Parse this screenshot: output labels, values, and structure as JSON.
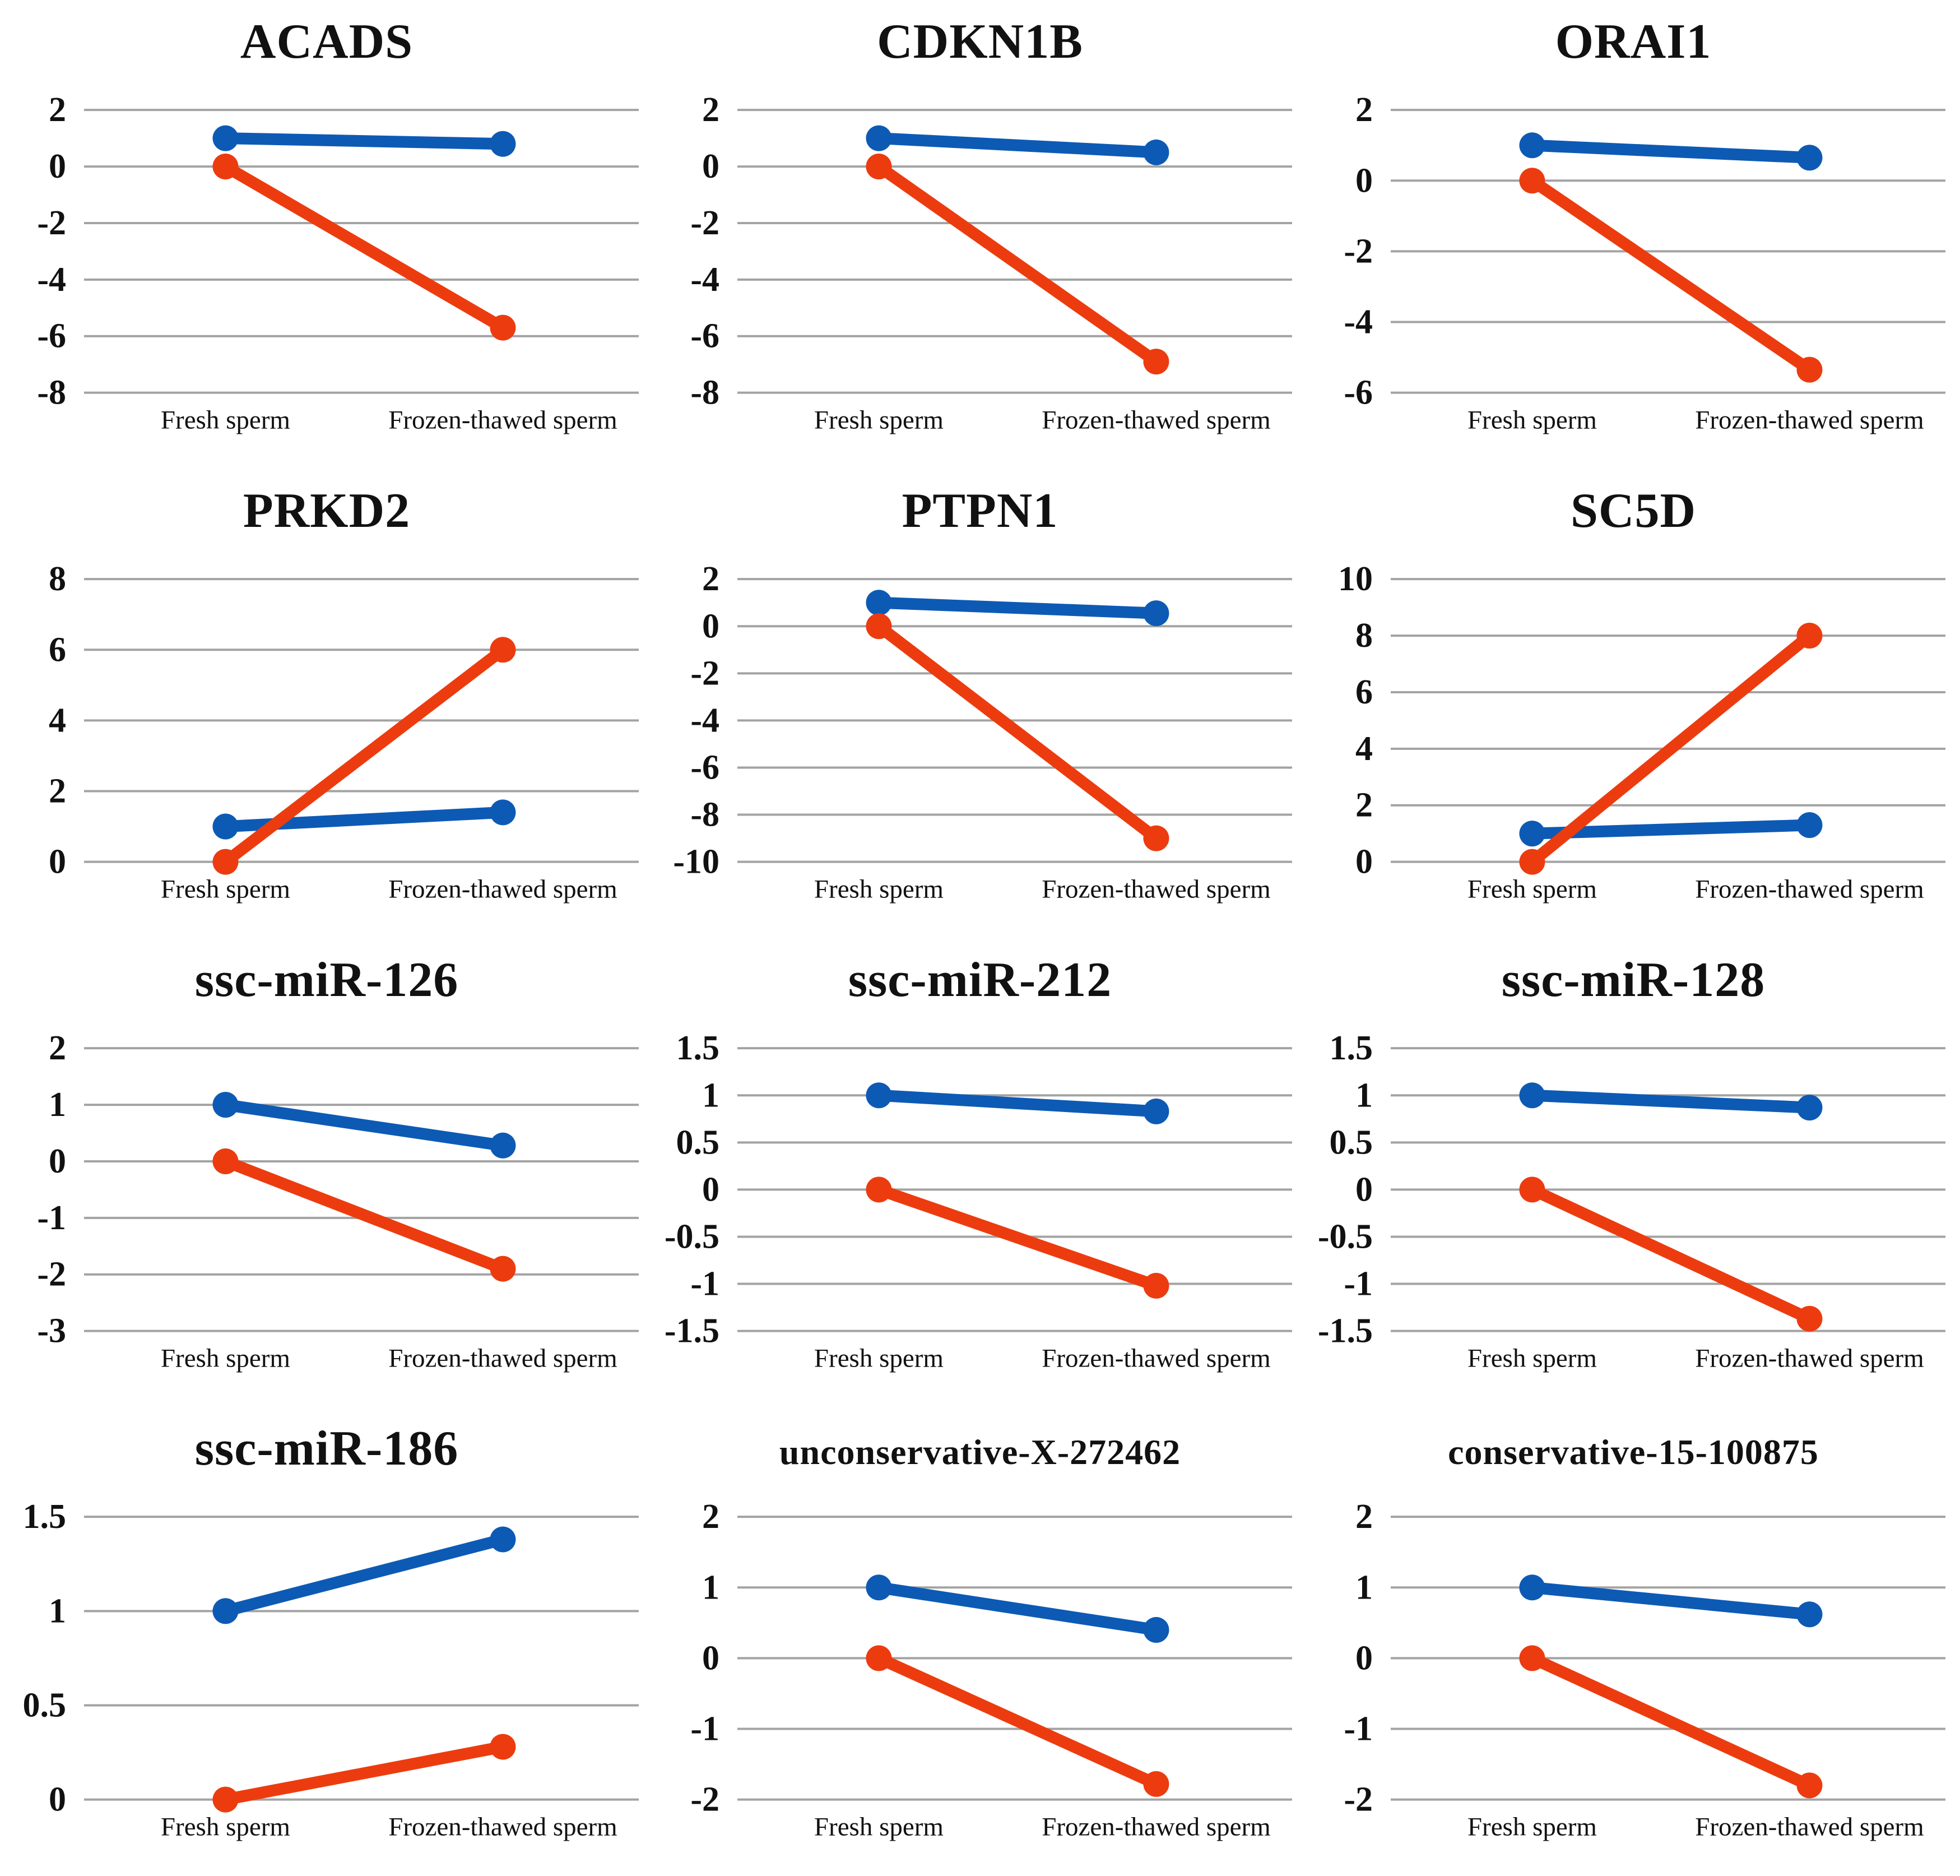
{
  "colors": {
    "blue_series": "#0d5ab5",
    "red_series": "#ec3c0f",
    "gridline": "#a3a3a3",
    "text": "#111111"
  },
  "chart_data": [
    {
      "type": "line",
      "title": "ACADS",
      "xlabel": "",
      "ylabel": "",
      "categories": [
        "Fresh sperm",
        "Frozen-thawed sperm"
      ],
      "yticks": [
        2,
        0,
        -2,
        -4,
        -6,
        -8
      ],
      "ylim": [
        -8,
        2
      ],
      "grid": true,
      "legend": "none",
      "series": [
        {
          "color": "#0d5ab5",
          "values": [
            1,
            0.8
          ]
        },
        {
          "color": "#ec3c0f",
          "values": [
            0,
            -5.7
          ]
        }
      ]
    },
    {
      "type": "line",
      "title": "CDKN1B",
      "xlabel": "",
      "ylabel": "",
      "categories": [
        "Fresh sperm",
        "Frozen-thawed sperm"
      ],
      "yticks": [
        2,
        0,
        -2,
        -4,
        -6,
        -8
      ],
      "ylim": [
        -8,
        2
      ],
      "grid": true,
      "legend": "none",
      "series": [
        {
          "color": "#0d5ab5",
          "values": [
            1,
            0.5
          ]
        },
        {
          "color": "#ec3c0f",
          "values": [
            0,
            -6.9
          ]
        }
      ]
    },
    {
      "type": "line",
      "title": "ORAI1",
      "xlabel": "",
      "ylabel": "",
      "categories": [
        "Fresh sperm",
        "Frozen-thawed sperm"
      ],
      "yticks": [
        2,
        0,
        -2,
        -4,
        -6
      ],
      "ylim": [
        -6,
        2
      ],
      "grid": true,
      "legend": "none",
      "series": [
        {
          "color": "#0d5ab5",
          "values": [
            1,
            0.65
          ]
        },
        {
          "color": "#ec3c0f",
          "values": [
            0,
            -5.35
          ]
        }
      ]
    },
    {
      "type": "line",
      "title": "PRKD2",
      "xlabel": "",
      "ylabel": "",
      "categories": [
        "Fresh sperm",
        "Frozen-thawed sperm"
      ],
      "yticks": [
        8,
        6,
        4,
        2,
        0
      ],
      "ylim": [
        0,
        8
      ],
      "grid": true,
      "legend": "none",
      "series": [
        {
          "color": "#0d5ab5",
          "values": [
            1,
            1.4
          ]
        },
        {
          "color": "#ec3c0f",
          "values": [
            0,
            6
          ]
        }
      ]
    },
    {
      "type": "line",
      "title": "PTPN1",
      "xlabel": "",
      "ylabel": "",
      "categories": [
        "Fresh sperm",
        "Frozen-thawed sperm"
      ],
      "yticks": [
        2,
        0,
        -2,
        -4,
        -6,
        -8,
        -10
      ],
      "ylim": [
        -10,
        2
      ],
      "grid": true,
      "legend": "none",
      "series": [
        {
          "color": "#0d5ab5",
          "values": [
            1,
            0.55
          ]
        },
        {
          "color": "#ec3c0f",
          "values": [
            0,
            -9
          ]
        }
      ]
    },
    {
      "type": "line",
      "title": "SC5D",
      "xlabel": "",
      "ylabel": "",
      "categories": [
        "Fresh sperm",
        "Frozen-thawed sperm"
      ],
      "yticks": [
        10,
        8,
        6,
        4,
        2,
        0
      ],
      "ylim": [
        0,
        10
      ],
      "grid": true,
      "legend": "none",
      "series": [
        {
          "color": "#0d5ab5",
          "values": [
            1,
            1.3
          ]
        },
        {
          "color": "#ec3c0f",
          "values": [
            0,
            8
          ]
        }
      ]
    },
    {
      "type": "line",
      "title": "ssc-miR-126",
      "xlabel": "",
      "ylabel": "",
      "categories": [
        "Fresh sperm",
        "Frozen-thawed sperm"
      ],
      "yticks": [
        2,
        1,
        0,
        -1,
        -2,
        -3
      ],
      "ylim": [
        -3,
        2
      ],
      "grid": true,
      "legend": "none",
      "series": [
        {
          "color": "#0d5ab5",
          "values": [
            1,
            0.28
          ]
        },
        {
          "color": "#ec3c0f",
          "values": [
            0,
            -1.9
          ]
        }
      ]
    },
    {
      "type": "line",
      "title": "ssc-miR-212",
      "xlabel": "",
      "ylabel": "",
      "categories": [
        "Fresh sperm",
        "Frozen-thawed sperm"
      ],
      "yticks": [
        1.5,
        1,
        0.5,
        0,
        -0.5,
        -1,
        -1.5
      ],
      "ylim": [
        -1.5,
        1.5
      ],
      "grid": true,
      "legend": "none",
      "series": [
        {
          "color": "#0d5ab5",
          "values": [
            1,
            0.83
          ]
        },
        {
          "color": "#ec3c0f",
          "values": [
            0,
            -1.02
          ]
        }
      ]
    },
    {
      "type": "line",
      "title": "ssc-miR-128",
      "xlabel": "",
      "ylabel": "",
      "categories": [
        "Fresh sperm",
        "Frozen-thawed sperm"
      ],
      "yticks": [
        1.5,
        1,
        0.5,
        0,
        -0.5,
        -1,
        -1.5
      ],
      "ylim": [
        -1.5,
        1.5
      ],
      "grid": true,
      "legend": "none",
      "series": [
        {
          "color": "#0d5ab5",
          "values": [
            1,
            0.87
          ]
        },
        {
          "color": "#ec3c0f",
          "values": [
            0,
            -1.37
          ]
        }
      ]
    },
    {
      "type": "line",
      "title": "ssc-miR-186",
      "xlabel": "",
      "ylabel": "",
      "categories": [
        "Fresh sperm",
        "Frozen-thawed sperm"
      ],
      "yticks": [
        1.5,
        1,
        0.5,
        0
      ],
      "ylim": [
        0,
        1.5
      ],
      "grid": true,
      "legend": "none",
      "series": [
        {
          "color": "#0d5ab5",
          "values": [
            1,
            1.38
          ]
        },
        {
          "color": "#ec3c0f",
          "values": [
            0,
            0.28
          ]
        }
      ]
    },
    {
      "type": "line",
      "title": "unconservative-X-272462",
      "xlabel": "",
      "ylabel": "",
      "categories": [
        "Fresh sperm",
        "Frozen-thawed sperm"
      ],
      "yticks": [
        2,
        1,
        0,
        -1,
        -2
      ],
      "ylim": [
        -2,
        2
      ],
      "grid": true,
      "legend": "none",
      "series": [
        {
          "color": "#0d5ab5",
          "values": [
            1,
            0.4
          ]
        },
        {
          "color": "#ec3c0f",
          "values": [
            0,
            -1.78
          ]
        }
      ]
    },
    {
      "type": "line",
      "title": "conservative-15-100875",
      "xlabel": "",
      "ylabel": "",
      "categories": [
        "Fresh sperm",
        "Frozen-thawed sperm"
      ],
      "yticks": [
        2,
        1,
        0,
        -1,
        -2
      ],
      "ylim": [
        -2,
        2
      ],
      "grid": true,
      "legend": "none",
      "series": [
        {
          "color": "#0d5ab5",
          "values": [
            1,
            0.62
          ]
        },
        {
          "color": "#ec3c0f",
          "values": [
            0,
            -1.8
          ]
        }
      ]
    }
  ]
}
